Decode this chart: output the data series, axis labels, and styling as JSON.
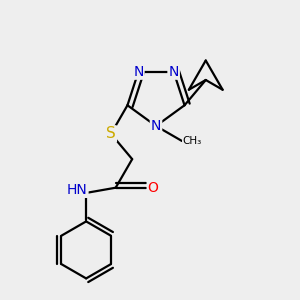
{
  "bg_color": "#eeeeee",
  "atom_colors": {
    "C": "#000000",
    "N": "#0000cc",
    "O": "#ff0000",
    "S": "#ccaa00",
    "H": "#000000"
  },
  "bond_color": "#000000",
  "bond_width": 1.6,
  "font_size_atom": 10,
  "font_size_small": 8.5
}
